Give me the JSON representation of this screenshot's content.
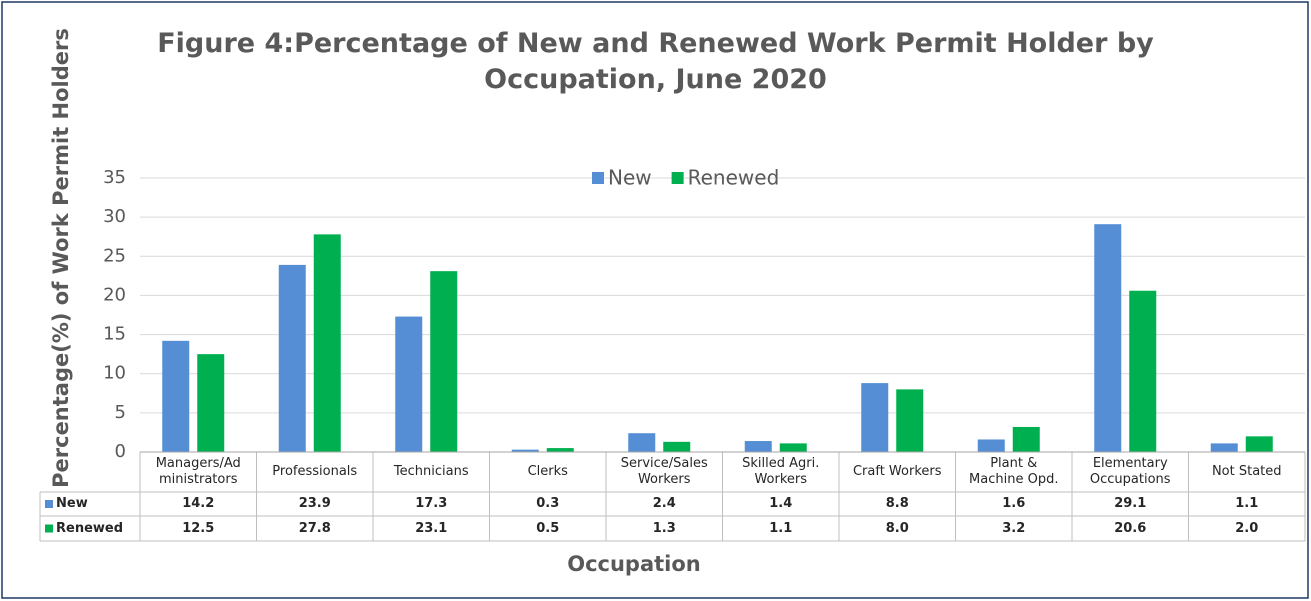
{
  "chart_data": {
    "type": "bar",
    "title": "Figure 4:Percentage of New and Renewed Work Permit Holder by\nOccupation, June 2020",
    "y_label": "Percentage(%) of Work Permit Holders",
    "x_label": "Occupation",
    "categories": [
      "Managers/Ad\nministrators",
      "Professionals",
      "Technicians",
      "Clerks",
      "Service/Sales\nWorkers",
      "Skilled Agri.\nWorkers",
      "Craft Workers",
      "Plant &\nMachine Opd.",
      "Elementary\nOccupations",
      "Not Stated"
    ],
    "series": [
      {
        "name": "New",
        "color": "#558ed5",
        "values": [
          14.2,
          23.9,
          17.3,
          0.3,
          2.4,
          1.4,
          8.8,
          1.6,
          29.1,
          1.1
        ]
      },
      {
        "name": "Renewed",
        "color": "#00b050",
        "values": [
          12.5,
          27.8,
          23.1,
          0.5,
          1.3,
          1.1,
          8.0,
          3.2,
          20.6,
          2.0
        ],
        "value_labels": [
          "12.5",
          "27.8",
          "23.1",
          "0.5",
          "1.3",
          "1.1",
          "8.0",
          "3.2",
          "20.6",
          "2.0"
        ]
      }
    ],
    "ylim": [
      0,
      35
    ],
    "yticks": [
      0,
      5,
      10,
      15,
      20,
      25,
      30,
      35
    ],
    "grid": true,
    "legend": "top"
  }
}
